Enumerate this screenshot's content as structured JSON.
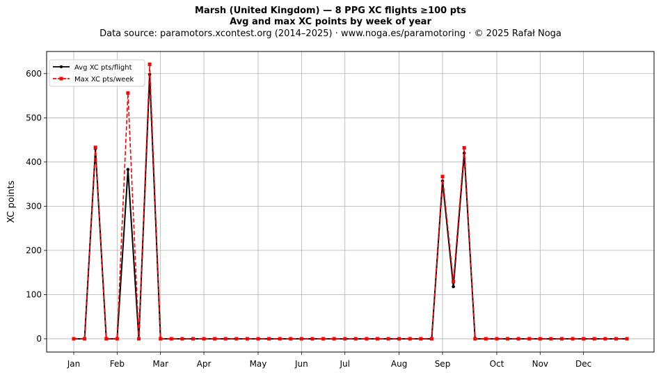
{
  "chart_data": {
    "type": "line",
    "title": "Marsh (United Kingdom)  —  8 PPG XC flights ≥100 pts",
    "subtitle": "Avg and max XC points by week of year",
    "source_note": "Data source: paramotors.xcontest.org (2014–2025)  ·  www.noga.es/paramotoring  ·  © 2025 Rafał Noga",
    "xlabel": "",
    "ylabel": "XC points",
    "xlim": [
      -2.5,
      53.5
    ],
    "ylim": [
      -30,
      650
    ],
    "grid": true,
    "legend_position": "upper-left",
    "x_ticks": [
      {
        "label": "Jan",
        "week": 0
      },
      {
        "label": "Feb",
        "week": 4
      },
      {
        "label": "Mar",
        "week": 8
      },
      {
        "label": "Apr",
        "week": 12
      },
      {
        "label": "May",
        "week": 17
      },
      {
        "label": "Jun",
        "week": 21
      },
      {
        "label": "Jul",
        "week": 25
      },
      {
        "label": "Aug",
        "week": 30
      },
      {
        "label": "Sep",
        "week": 34
      },
      {
        "label": "Oct",
        "week": 39
      },
      {
        "label": "Nov",
        "week": 43
      },
      {
        "label": "Dec",
        "week": 47
      }
    ],
    "y_ticks": [
      0,
      100,
      200,
      300,
      400,
      500,
      600
    ],
    "weeks": [
      0,
      1,
      2,
      3,
      4,
      5,
      6,
      7,
      8,
      9,
      10,
      11,
      12,
      13,
      14,
      15,
      16,
      17,
      18,
      19,
      20,
      21,
      22,
      23,
      24,
      25,
      26,
      27,
      28,
      29,
      30,
      31,
      32,
      33,
      34,
      35,
      36,
      37,
      38,
      39,
      40,
      41,
      42,
      43,
      44,
      45,
      46,
      47,
      48,
      49,
      50,
      51
    ],
    "series": [
      {
        "name": "Avg XC pts/flight",
        "color": "#000000",
        "marker": "circle",
        "linestyle": "solid",
        "values": [
          0,
          0,
          430,
          0,
          0,
          383,
          0,
          598,
          0,
          0,
          0,
          0,
          0,
          0,
          0,
          0,
          0,
          0,
          0,
          0,
          0,
          0,
          0,
          0,
          0,
          0,
          0,
          0,
          0,
          0,
          0,
          0,
          0,
          0,
          357,
          118,
          420,
          0,
          0,
          0,
          0,
          0,
          0,
          0,
          0,
          0,
          0,
          0,
          0,
          0,
          0,
          0
        ]
      },
      {
        "name": "Max XC pts/week",
        "color": "#ff0000",
        "marker": "square",
        "linestyle": "dashed",
        "values": [
          0,
          0,
          433,
          0,
          0,
          556,
          0,
          621,
          0,
          0,
          0,
          0,
          0,
          0,
          0,
          0,
          0,
          0,
          0,
          0,
          0,
          0,
          0,
          0,
          0,
          0,
          0,
          0,
          0,
          0,
          0,
          0,
          0,
          0,
          367,
          129,
          432,
          0,
          0,
          0,
          0,
          0,
          0,
          0,
          0,
          0,
          0,
          0,
          0,
          0,
          0,
          0
        ]
      }
    ]
  }
}
